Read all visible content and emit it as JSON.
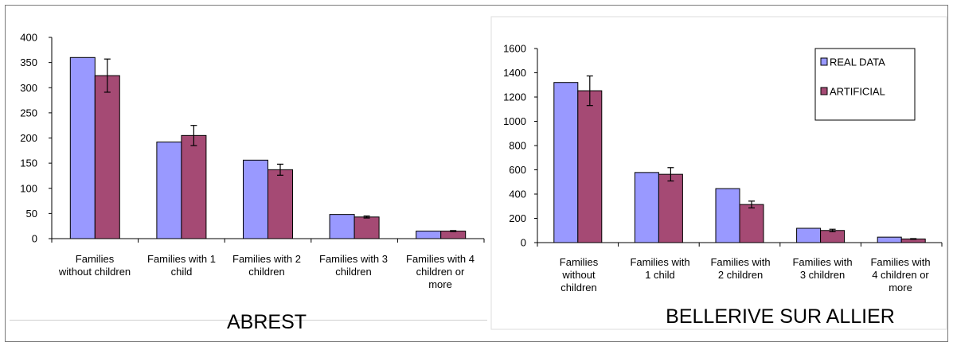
{
  "chart_data": [
    {
      "type": "bar",
      "title": "ABREST",
      "categories": [
        "Families without children",
        "Families with 1 child",
        "Families with 2 children",
        "Families with 3 children",
        "Families with 4 children or more"
      ],
      "category_lines": [
        [
          "Families",
          "without children"
        ],
        [
          "Families with 1",
          "child"
        ],
        [
          "Families with 2",
          "children"
        ],
        [
          "Families with 3",
          "children"
        ],
        [
          "Families with 4",
          "children or",
          "more"
        ]
      ],
      "series": [
        {
          "name": "REAL DATA",
          "color": "#9999ff",
          "values": [
            360,
            192,
            156,
            48,
            15
          ]
        },
        {
          "name": "ARTIFICIAL",
          "color": "#a54a74",
          "values": [
            324,
            205,
            137,
            43,
            15
          ],
          "error": [
            33,
            20,
            11,
            2,
            1
          ]
        }
      ],
      "ylim": [
        0,
        400
      ],
      "yticks": [
        0,
        50,
        100,
        150,
        200,
        250,
        300,
        350,
        400
      ],
      "legend": false
    },
    {
      "type": "bar",
      "title": "BELLERIVE SUR ALLIER",
      "categories": [
        "Families without children",
        "Families with 1 child",
        "Families with 2 children",
        "Families with 3 children",
        "Families with 4 children or more"
      ],
      "category_lines": [
        [
          "Families",
          "without",
          "children"
        ],
        [
          "Families with",
          "1 child"
        ],
        [
          "Families with",
          "2 children"
        ],
        [
          "Families with",
          "3 children"
        ],
        [
          "Families with",
          "4 children or",
          "more"
        ]
      ],
      "series": [
        {
          "name": "REAL DATA",
          "color": "#9999ff",
          "values": [
            1320,
            578,
            445,
            118,
            45
          ]
        },
        {
          "name": "ARTIFICIAL",
          "color": "#a54a74",
          "values": [
            1252,
            563,
            314,
            100,
            30
          ],
          "error": [
            122,
            55,
            28,
            10,
            3
          ]
        }
      ],
      "ylim": [
        0,
        1600
      ],
      "yticks": [
        0,
        200,
        400,
        600,
        800,
        1000,
        1200,
        1400,
        1600
      ],
      "legend": true,
      "legend_position": "top-right"
    }
  ]
}
